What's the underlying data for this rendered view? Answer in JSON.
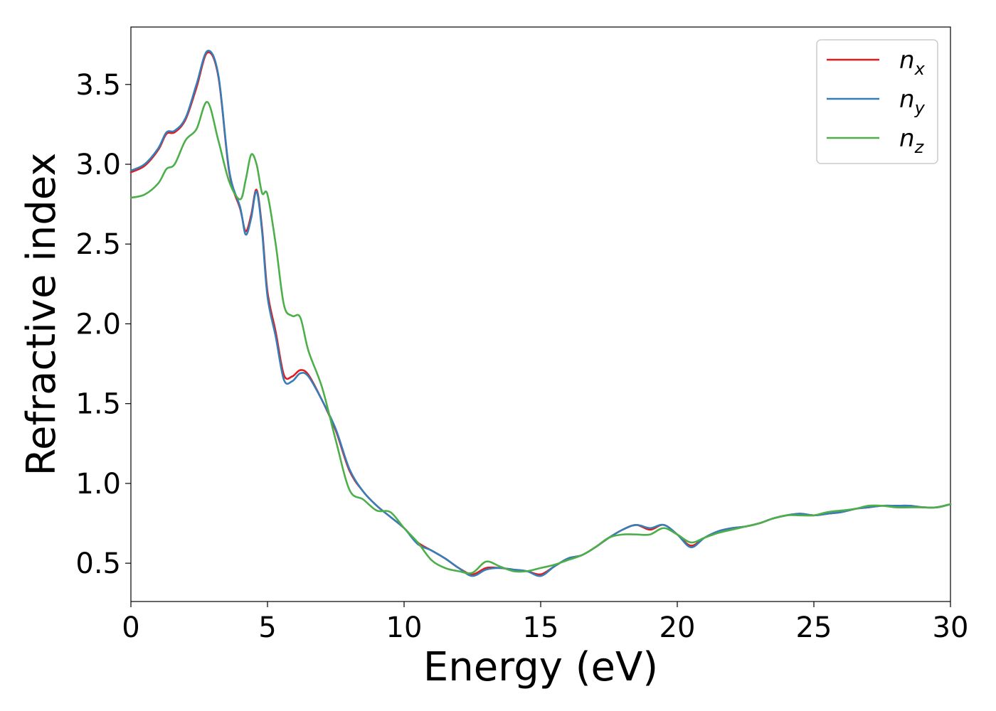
{
  "chart_data": {
    "type": "line",
    "xlabel": "Energy (eV)",
    "ylabel": "Refractive index",
    "xlim": [
      0,
      30
    ],
    "ylim": [
      0.26,
      3.86
    ],
    "xticks": [
      0,
      5,
      10,
      15,
      20,
      25,
      30
    ],
    "xtick_labels": [
      "0",
      "5",
      "10",
      "15",
      "20",
      "25",
      "30"
    ],
    "yticks": [
      0.5,
      1.0,
      1.5,
      2.0,
      2.5,
      3.0,
      3.5
    ],
    "ytick_labels": [
      "0.5",
      "1.0",
      "1.5",
      "2.0",
      "2.5",
      "3.0",
      "3.5"
    ],
    "grid": false,
    "legend_position": "top-right",
    "series": [
      {
        "name": "n",
        "subscript": "x",
        "color": "#e41a1c",
        "x": [
          0,
          0.5,
          1.0,
          1.3,
          1.6,
          2.0,
          2.4,
          2.8,
          3.2,
          3.6,
          4.0,
          4.2,
          4.4,
          4.6,
          4.8,
          5.0,
          5.3,
          5.6,
          5.9,
          6.2,
          6.5,
          7.0,
          7.5,
          8.0,
          8.5,
          9.0,
          9.5,
          10.0,
          10.5,
          11.0,
          11.5,
          12.0,
          12.5,
          13.0,
          13.5,
          14.0,
          14.5,
          15.0,
          15.5,
          16.0,
          16.5,
          17.0,
          17.5,
          18.0,
          18.5,
          19.0,
          19.5,
          20.0,
          20.5,
          21.0,
          21.5,
          22.0,
          22.5,
          23.0,
          23.5,
          24.0,
          24.5,
          25.0,
          25.5,
          26.0,
          26.5,
          27.0,
          27.5,
          28.0,
          28.5,
          29.0,
          29.5,
          30.0
        ],
        "values": [
          2.95,
          2.99,
          3.09,
          3.19,
          3.2,
          3.28,
          3.48,
          3.7,
          3.55,
          2.95,
          2.72,
          2.58,
          2.68,
          2.84,
          2.6,
          2.2,
          1.95,
          1.68,
          1.67,
          1.71,
          1.68,
          1.52,
          1.33,
          1.08,
          0.95,
          0.86,
          0.79,
          0.72,
          0.63,
          0.58,
          0.53,
          0.47,
          0.43,
          0.47,
          0.47,
          0.46,
          0.45,
          0.43,
          0.48,
          0.53,
          0.55,
          0.6,
          0.66,
          0.71,
          0.74,
          0.71,
          0.74,
          0.68,
          0.61,
          0.66,
          0.7,
          0.72,
          0.73,
          0.75,
          0.78,
          0.8,
          0.81,
          0.8,
          0.81,
          0.82,
          0.84,
          0.85,
          0.86,
          0.86,
          0.86,
          0.85,
          0.85,
          0.87
        ]
      },
      {
        "name": "n",
        "subscript": "y",
        "color": "#377eb8",
        "x": [
          0,
          0.5,
          1.0,
          1.3,
          1.6,
          2.0,
          2.4,
          2.8,
          3.2,
          3.6,
          4.0,
          4.2,
          4.4,
          4.6,
          4.8,
          5.0,
          5.3,
          5.6,
          5.9,
          6.2,
          6.5,
          7.0,
          7.5,
          8.0,
          8.5,
          9.0,
          9.5,
          10.0,
          10.5,
          11.0,
          11.5,
          12.0,
          12.5,
          13.0,
          13.5,
          14.0,
          14.5,
          15.0,
          15.5,
          16.0,
          16.5,
          17.0,
          17.5,
          18.0,
          18.5,
          19.0,
          19.5,
          20.0,
          20.5,
          21.0,
          21.5,
          22.0,
          22.5,
          23.0,
          23.5,
          24.0,
          24.5,
          25.0,
          25.5,
          26.0,
          26.5,
          27.0,
          27.5,
          28.0,
          28.5,
          29.0,
          29.5,
          30.0
        ],
        "values": [
          2.96,
          3.0,
          3.1,
          3.2,
          3.21,
          3.29,
          3.5,
          3.71,
          3.56,
          2.96,
          2.73,
          2.56,
          2.66,
          2.83,
          2.58,
          2.17,
          1.92,
          1.65,
          1.64,
          1.69,
          1.67,
          1.52,
          1.34,
          1.09,
          0.95,
          0.86,
          0.79,
          0.72,
          0.62,
          0.58,
          0.53,
          0.47,
          0.42,
          0.46,
          0.47,
          0.46,
          0.45,
          0.42,
          0.48,
          0.53,
          0.55,
          0.6,
          0.66,
          0.71,
          0.74,
          0.72,
          0.74,
          0.68,
          0.6,
          0.66,
          0.7,
          0.72,
          0.73,
          0.75,
          0.78,
          0.8,
          0.81,
          0.8,
          0.81,
          0.82,
          0.84,
          0.85,
          0.86,
          0.86,
          0.86,
          0.85,
          0.85,
          0.87
        ]
      },
      {
        "name": "n",
        "subscript": "z",
        "color": "#4daf4a",
        "x": [
          0,
          0.5,
          1.0,
          1.3,
          1.6,
          2.0,
          2.4,
          2.8,
          3.2,
          3.6,
          4.0,
          4.2,
          4.4,
          4.6,
          4.8,
          5.0,
          5.3,
          5.6,
          5.9,
          6.2,
          6.5,
          7.0,
          7.5,
          8.0,
          8.5,
          9.0,
          9.5,
          10.0,
          10.5,
          11.0,
          11.5,
          12.0,
          12.5,
          13.0,
          13.5,
          14.0,
          14.5,
          15.0,
          15.5,
          16.0,
          16.5,
          17.0,
          17.5,
          18.0,
          18.5,
          19.0,
          19.5,
          20.0,
          20.5,
          21.0,
          21.5,
          22.0,
          22.5,
          23.0,
          23.5,
          24.0,
          24.5,
          25.0,
          25.5,
          26.0,
          26.5,
          27.0,
          27.5,
          28.0,
          28.5,
          29.0,
          29.5,
          30.0
        ],
        "values": [
          2.79,
          2.81,
          2.88,
          2.97,
          3.0,
          3.15,
          3.22,
          3.39,
          3.15,
          2.89,
          2.78,
          2.9,
          3.06,
          3.0,
          2.82,
          2.81,
          2.5,
          2.12,
          2.05,
          2.04,
          1.83,
          1.6,
          1.27,
          0.96,
          0.9,
          0.83,
          0.82,
          0.72,
          0.63,
          0.52,
          0.47,
          0.45,
          0.44,
          0.51,
          0.48,
          0.45,
          0.45,
          0.47,
          0.49,
          0.52,
          0.55,
          0.6,
          0.66,
          0.68,
          0.68,
          0.68,
          0.72,
          0.68,
          0.63,
          0.66,
          0.69,
          0.71,
          0.73,
          0.75,
          0.78,
          0.8,
          0.8,
          0.8,
          0.82,
          0.83,
          0.84,
          0.86,
          0.86,
          0.85,
          0.85,
          0.85,
          0.85,
          0.87
        ]
      }
    ]
  }
}
